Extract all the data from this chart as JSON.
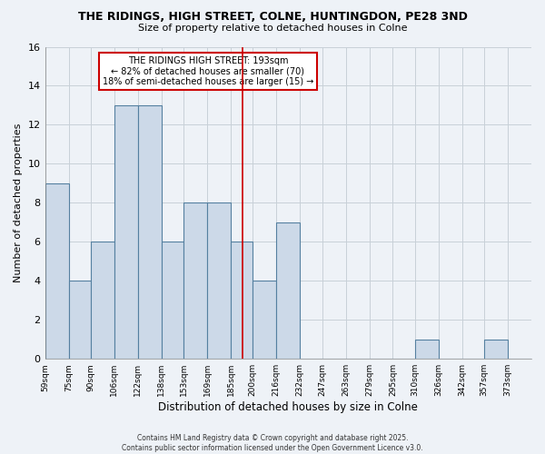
{
  "title": "THE RIDINGS, HIGH STREET, COLNE, HUNTINGDON, PE28 3ND",
  "subtitle": "Size of property relative to detached houses in Colne",
  "xlabel": "Distribution of detached houses by size in Colne",
  "ylabel": "Number of detached properties",
  "bins": [
    59,
    75,
    90,
    106,
    122,
    138,
    153,
    169,
    185,
    200,
    216,
    232,
    247,
    263,
    279,
    295,
    310,
    326,
    342,
    357,
    373,
    389
  ],
  "bin_labels": [
    "59sqm",
    "75sqm",
    "90sqm",
    "106sqm",
    "122sqm",
    "138sqm",
    "153sqm",
    "169sqm",
    "185sqm",
    "200sqm",
    "216sqm",
    "232sqm",
    "247sqm",
    "263sqm",
    "279sqm",
    "295sqm",
    "310sqm",
    "326sqm",
    "342sqm",
    "357sqm",
    "373sqm"
  ],
  "counts": [
    9,
    4,
    6,
    13,
    13,
    6,
    8,
    8,
    6,
    4,
    7,
    0,
    0,
    0,
    0,
    0,
    1,
    0,
    0,
    1,
    0
  ],
  "bar_color": "#ccd9e8",
  "bar_edge_color": "#5580a0",
  "property_line_x": 193,
  "property_line_color": "#cc0000",
  "annotation_title": "THE RIDINGS HIGH STREET: 193sqm",
  "annotation_line1": "← 82% of detached houses are smaller (70)",
  "annotation_line2": "18% of semi-detached houses are larger (15) →",
  "annotation_box_color": "#ffffff",
  "annotation_box_edge": "#cc0000",
  "ylim": [
    0,
    16
  ],
  "yticks": [
    0,
    2,
    4,
    6,
    8,
    10,
    12,
    14,
    16
  ],
  "grid_color": "#c8d0d8",
  "background_color": "#eef2f7",
  "footer_line1": "Contains HM Land Registry data © Crown copyright and database right 2025.",
  "footer_line2": "Contains public sector information licensed under the Open Government Licence v3.0."
}
